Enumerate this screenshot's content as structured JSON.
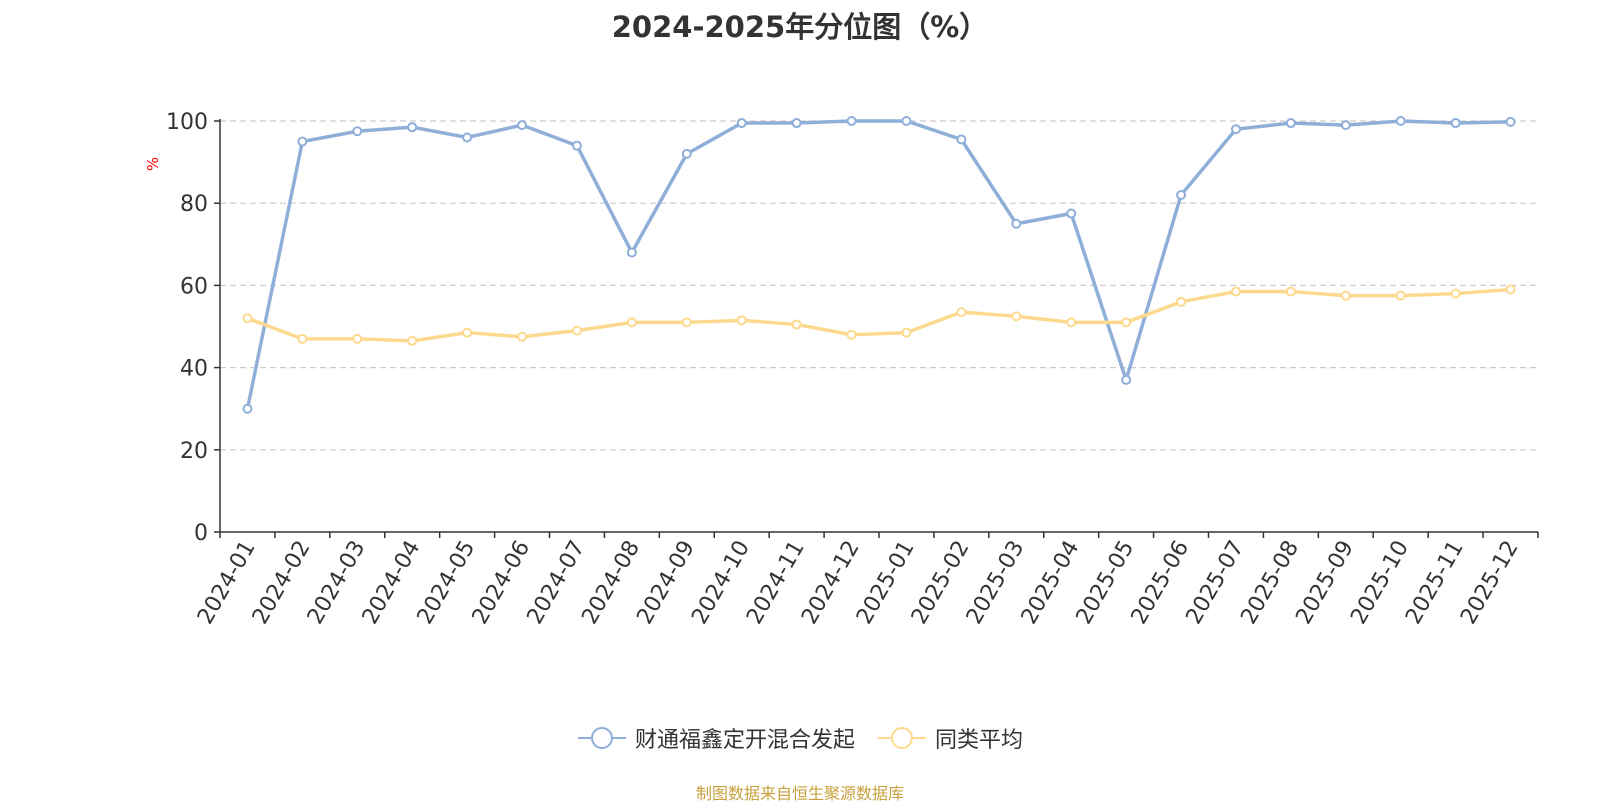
{
  "chart_data": {
    "type": "line",
    "title": "2024-2025年分位图（%）",
    "ylabel": "%",
    "xlabel": "",
    "ylim": [
      0,
      100
    ],
    "yticks": [
      "0",
      "20",
      "40",
      "60",
      "80",
      "100"
    ],
    "grid": true,
    "legend_position": "bottom",
    "categories": [
      "2024-01",
      "2024-02",
      "2024-03",
      "2024-04",
      "2024-05",
      "2024-06",
      "2024-07",
      "2024-08",
      "2024-09",
      "2024-10",
      "2024-11",
      "2024-12",
      "2025-01",
      "2025-02",
      "2025-03",
      "2025-04",
      "2025-05",
      "2025-06",
      "2025-07",
      "2025-08",
      "2025-09",
      "2025-10",
      "2025-11",
      "2025-12"
    ],
    "series": [
      {
        "name": "财通福鑫定开混合发起",
        "color": "#8fafd9",
        "values": [
          30,
          95,
          97.5,
          98.5,
          96,
          99,
          94,
          68,
          92,
          99.5,
          99.5,
          100,
          100,
          95.5,
          75,
          77.5,
          37,
          82,
          98,
          99.5,
          99,
          100,
          99.5,
          99.8
        ]
      },
      {
        "name": "同类平均",
        "color": "#fdd98e",
        "values": [
          52,
          47,
          47,
          46.5,
          48.5,
          47.5,
          49,
          51,
          51,
          51.5,
          50.5,
          48,
          48.5,
          53.5,
          52.5,
          51,
          51,
          56,
          58.5,
          58.5,
          57.5,
          57.5,
          58,
          59
        ]
      }
    ]
  },
  "source": "制图数据来自恒生聚源数据库",
  "colors": {
    "axis": "#333333",
    "grid": "#cccccc",
    "ylabel": "#ff0000"
  }
}
